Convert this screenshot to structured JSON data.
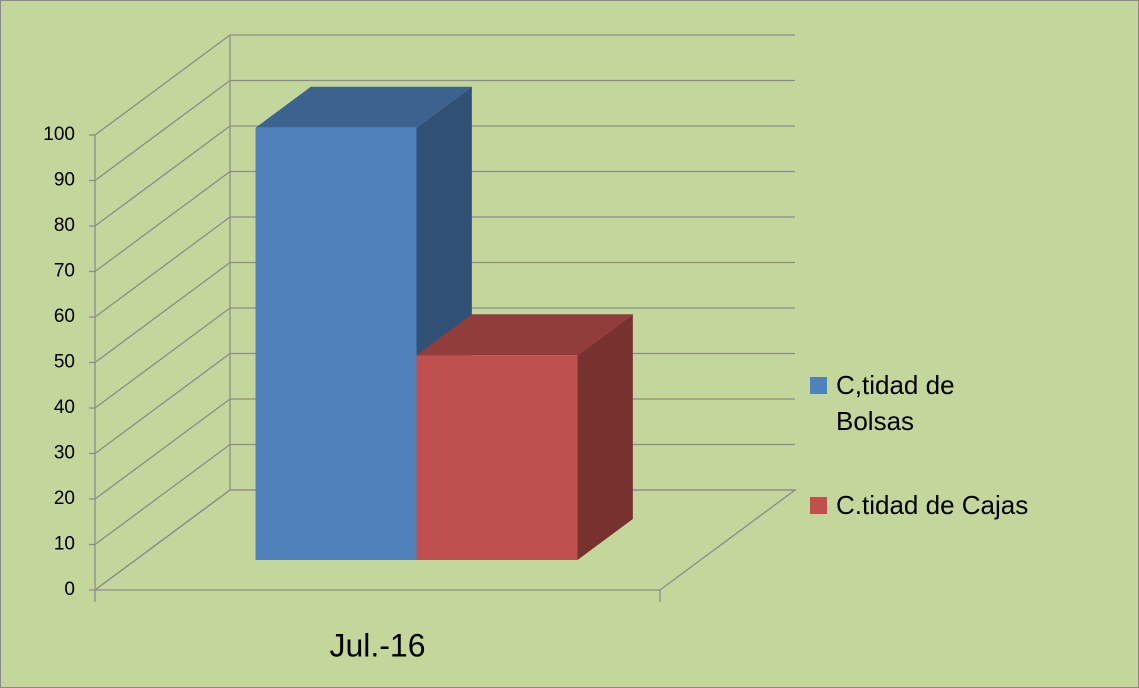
{
  "chart_data": {
    "type": "bar3d",
    "categories": [
      "Jul.-16"
    ],
    "series": [
      {
        "name": "C,tidad de Bolsas",
        "color": "#4f81bd",
        "values": [
          95
        ]
      },
      {
        "name": "C.tidad de Cajas",
        "color": "#c0504d",
        "values": [
          45
        ]
      }
    ],
    "ylim": [
      0,
      100
    ],
    "yticks": [
      0,
      10,
      20,
      30,
      40,
      50,
      60,
      70,
      80,
      90,
      100
    ],
    "grid": true,
    "legend": "right"
  }
}
